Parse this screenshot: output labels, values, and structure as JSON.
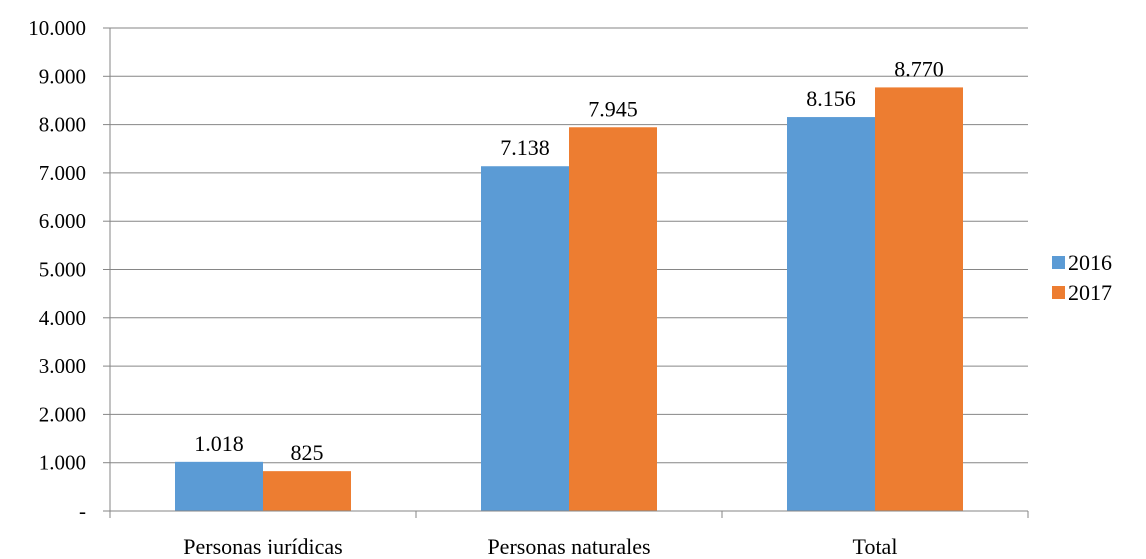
{
  "chart_data": {
    "type": "bar",
    "title": "",
    "xlabel": "",
    "ylabel": "",
    "categories": [
      "Personas jurídicas",
      "Personas naturales",
      "Total"
    ],
    "series": [
      {
        "name": "2016",
        "values": [
          1018,
          7138,
          8156
        ],
        "value_labels": [
          "1.018",
          "7.138",
          "8.156"
        ],
        "color": "#5B9BD5"
      },
      {
        "name": "2017",
        "values": [
          825,
          7945,
          8770
        ],
        "value_labels": [
          "825",
          "7.945",
          "8.770"
        ],
        "color": "#ED7D31"
      }
    ],
    "ylim": [
      0,
      10000
    ],
    "y_ticks": [
      0,
      1000,
      2000,
      3000,
      4000,
      5000,
      6000,
      7000,
      8000,
      9000,
      10000
    ],
    "y_tick_labels": [
      "-",
      "1.000",
      "2.000",
      "3.000",
      "4.000",
      "5.000",
      "6.000",
      "7.000",
      "8.000",
      "9.000",
      "10.000"
    ],
    "grid": true,
    "legend_position": "right"
  }
}
